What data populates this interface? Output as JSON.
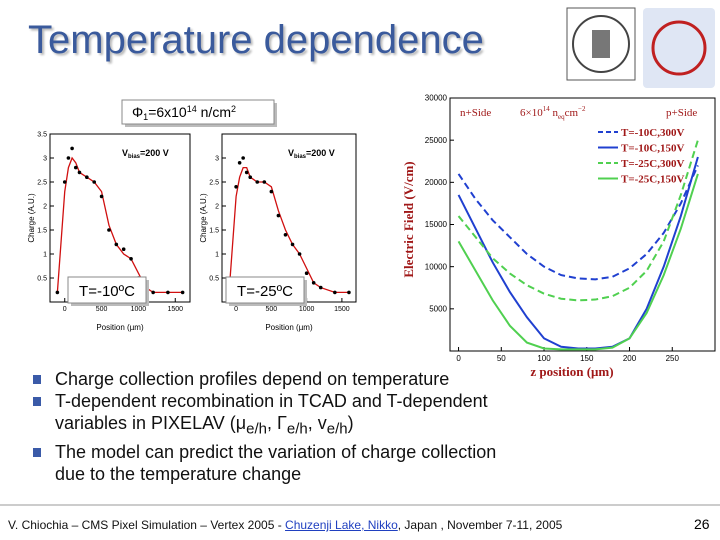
{
  "title": "Temperature dependence",
  "fluence": {
    "symbol": "Φ",
    "sub": "1",
    "text": "=6x10",
    "exp": "14",
    "unit": " n/cm",
    "unit_exp": "2"
  },
  "charge_plots": [
    {
      "temperature": "T=-10ºC",
      "bias": {
        "v": "V",
        "sub": "bias",
        "text": "=200 V"
      },
      "ylabel": "Charge (A.U.)",
      "xlabel": "Position (µm)",
      "xlim": [
        -200,
        1700
      ],
      "ylim": [
        0,
        3.5
      ],
      "xticks": [
        0,
        500,
        1000,
        1500
      ],
      "yticks": [
        0.5,
        1,
        1.5,
        2,
        2.5,
        3,
        3.5
      ],
      "x": [
        -100,
        0,
        50,
        100,
        150,
        200,
        300,
        400,
        500,
        600,
        700,
        800,
        900,
        1000,
        1100,
        1200,
        1400,
        1600
      ],
      "series": [
        {
          "color": "#d01010",
          "style": "line",
          "values": [
            0.2,
            2.3,
            2.8,
            3.0,
            2.9,
            2.7,
            2.6,
            2.5,
            2.3,
            1.6,
            1.2,
            1.0,
            0.9,
            0.6,
            0.3,
            0.2,
            0.2,
            0.2
          ]
        },
        {
          "color": "#000000",
          "style": "points",
          "values": [
            0.2,
            2.5,
            3.0,
            3.2,
            2.8,
            2.7,
            2.6,
            2.5,
            2.2,
            1.5,
            1.2,
            1.1,
            0.9,
            0.5,
            0.3,
            0.2,
            0.2,
            0.2
          ]
        }
      ]
    },
    {
      "temperature": "T=-25ºC",
      "bias": {
        "v": "V",
        "sub": "bias",
        "text": "=200 V"
      },
      "ylabel": "Charge (A.U.)",
      "xlabel": "Position (µm)",
      "xlim": [
        -200,
        1700
      ],
      "ylim": [
        0,
        3.5
      ],
      "xticks": [
        0,
        500,
        1000,
        1500
      ],
      "yticks": [
        0.5,
        1,
        1.5,
        2,
        2.5,
        3
      ],
      "x": [
        -100,
        0,
        50,
        100,
        150,
        200,
        300,
        400,
        500,
        600,
        700,
        800,
        900,
        1000,
        1100,
        1200,
        1400,
        1600
      ],
      "series": [
        {
          "color": "#d01010",
          "style": "line",
          "values": [
            0.2,
            2.2,
            2.6,
            2.8,
            2.8,
            2.6,
            2.5,
            2.5,
            2.4,
            1.9,
            1.5,
            1.2,
            1.0,
            0.7,
            0.4,
            0.3,
            0.2,
            0.2
          ]
        },
        {
          "color": "#000000",
          "style": "points",
          "values": [
            0.2,
            2.4,
            2.9,
            3.0,
            2.7,
            2.6,
            2.5,
            2.5,
            2.3,
            1.8,
            1.4,
            1.2,
            1.0,
            0.6,
            0.4,
            0.3,
            0.2,
            0.2
          ]
        }
      ]
    }
  ],
  "field_plot": {
    "type": "line",
    "ylabel": "Electric Field (V/cm)",
    "xlabel": "z position (μm)",
    "left_label": "n+Side",
    "right_label": "p+Side",
    "fluence": {
      "text": "6×10",
      "exp": "14",
      "n": " n",
      "sub": "eq",
      "unit": "cm",
      "unit_exp": "−2"
    },
    "xlim": [
      -10,
      300
    ],
    "ylim": [
      0,
      30000
    ],
    "xticks": [
      0,
      50,
      100,
      150,
      200,
      250
    ],
    "yticks": [
      5000,
      10000,
      15000,
      20000,
      25000,
      30000
    ],
    "x": [
      0,
      20,
      40,
      60,
      80,
      100,
      120,
      140,
      160,
      180,
      200,
      220,
      240,
      260,
      280
    ],
    "series": [
      {
        "name": "T=-10C,300V",
        "color": "#2040d0",
        "dashed": true,
        "values": [
          21000,
          18000,
          15500,
          13500,
          11500,
          10000,
          9000,
          8600,
          8500,
          8800,
          9800,
          11500,
          14000,
          17500,
          22000
        ]
      },
      {
        "name": "T=-10C,150V",
        "color": "#2040d0",
        "dashed": false,
        "values": [
          18500,
          14500,
          10500,
          7000,
          4000,
          1500,
          500,
          300,
          300,
          500,
          1500,
          5000,
          10000,
          16000,
          23000
        ]
      },
      {
        "name": "T=-25C,300V",
        "color": "#50d050",
        "dashed": true,
        "values": [
          16000,
          13500,
          11000,
          9200,
          7800,
          6800,
          6200,
          6000,
          6100,
          6500,
          7500,
          9500,
          13000,
          18500,
          25000
        ]
      },
      {
        "name": "T=-25C,150V",
        "color": "#50d050",
        "dashed": false,
        "values": [
          13000,
          9500,
          6000,
          3000,
          1000,
          300,
          200,
          200,
          200,
          400,
          1500,
          4500,
          9000,
          14500,
          21000
        ]
      }
    ]
  },
  "bullets": [
    [
      "Charge collection profiles depend on temperature"
    ],
    [
      "T-dependent recombination in TCAD and T-dependent variables in PIXELAV (",
      "μ",
      "e/h",
      ", ",
      "Γ",
      "e/h",
      ", ",
      "v",
      "e/h",
      ")"
    ],
    [
      "The model can predict the variation of charge collection due to the temperature change"
    ]
  ],
  "footer": {
    "before": "V. Chiochia – CMS Pixel Simulation – Vertex 2005 - ",
    "link": "Chuzenji Lake, Nikko",
    "after": ", Japan , November 7-11, 2005",
    "page": "26"
  }
}
